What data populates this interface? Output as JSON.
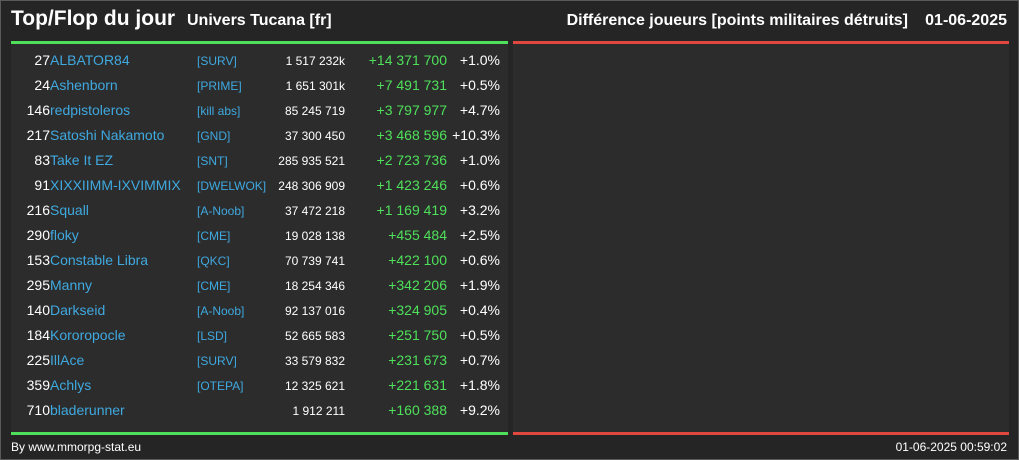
{
  "header": {
    "title": "Top/Flop du jour",
    "subtitle": "Univers Tucana [fr]",
    "metric": "Différence joueurs [points militaires détruits]",
    "date": "01-06-2025"
  },
  "colors": {
    "top_bar": "#4ee05a",
    "flop_bar": "#e0473f",
    "link": "#3fa9e0",
    "positive": "#4ee05a"
  },
  "top_rows": [
    {
      "rank": "27",
      "name": "ALBATOR84",
      "alliance": "[SURV]",
      "points": "1 517 232k",
      "diff": "+14 371 700",
      "pct": "+1.0%"
    },
    {
      "rank": "24",
      "name": "Ashenborn",
      "alliance": "[PRIME]",
      "points": "1 651 301k",
      "diff": "+7 491 731",
      "pct": "+0.5%"
    },
    {
      "rank": "146",
      "name": "redpistoleros",
      "alliance": "[kill abs]",
      "points": "85 245 719",
      "diff": "+3 797 977",
      "pct": "+4.7%"
    },
    {
      "rank": "217",
      "name": "Satoshi Nakamoto",
      "alliance": "[GND]",
      "points": "37 300 450",
      "diff": "+3 468 596",
      "pct": "+10.3%"
    },
    {
      "rank": "83",
      "name": "Take It EZ",
      "alliance": "[SNT]",
      "points": "285 935 521",
      "diff": "+2 723 736",
      "pct": "+1.0%"
    },
    {
      "rank": "91",
      "name": "XIXXIIMM-IXVIMMIX",
      "alliance": "[DWELWOK]",
      "points": "248 306 909",
      "diff": "+1 423 246",
      "pct": "+0.6%"
    },
    {
      "rank": "216",
      "name": "Squall",
      "alliance": "[A-Noob]",
      "points": "37 472 218",
      "diff": "+1 169 419",
      "pct": "+3.2%"
    },
    {
      "rank": "290",
      "name": "floky",
      "alliance": "[CME]",
      "points": "19 028 138",
      "diff": "+455 484",
      "pct": "+2.5%"
    },
    {
      "rank": "153",
      "name": "Constable Libra",
      "alliance": "[QKC]",
      "points": "70 739 741",
      "diff": "+422 100",
      "pct": "+0.6%"
    },
    {
      "rank": "295",
      "name": "Manny",
      "alliance": "[CME]",
      "points": "18 254 346",
      "diff": "+342 206",
      "pct": "+1.9%"
    },
    {
      "rank": "140",
      "name": "Darkseid",
      "alliance": "[A-Noob]",
      "points": "92 137 016",
      "diff": "+324 905",
      "pct": "+0.4%"
    },
    {
      "rank": "184",
      "name": "Kororopocle",
      "alliance": "[LSD]",
      "points": "52 665 583",
      "diff": "+251 750",
      "pct": "+0.5%"
    },
    {
      "rank": "225",
      "name": "IllAce",
      "alliance": "[SURV]",
      "points": "33 579 832",
      "diff": "+231 673",
      "pct": "+0.7%"
    },
    {
      "rank": "359",
      "name": "Achlys",
      "alliance": "[OTEPA]",
      "points": "12 325 621",
      "diff": "+221 631",
      "pct": "+1.8%"
    },
    {
      "rank": "710",
      "name": "bladerunner",
      "alliance": "",
      "points": "1 912 211",
      "diff": "+160 388",
      "pct": "+9.2%"
    }
  ],
  "footer": {
    "credit": "By www.mmorpg-stat.eu",
    "timestamp": "01-06-2025 00:59:02"
  }
}
